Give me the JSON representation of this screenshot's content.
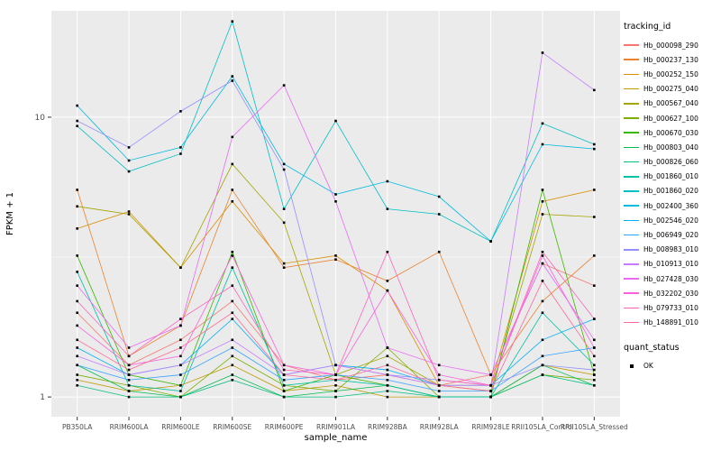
{
  "chart_data": {
    "type": "line",
    "title": "",
    "xlabel": "sample_name",
    "ylabel": "FPKM + 1",
    "y_scale": "log10",
    "y_ticks": [
      1,
      10
    ],
    "y_minor": [
      3.162
    ],
    "ylim": [
      0.85,
      24
    ],
    "grid": true,
    "panel_bg": "#EBEBEB",
    "grid_color": "#FFFFFF",
    "tick_label_color": "#4D4D4D",
    "point_color": "#000000",
    "legend_position": "right",
    "categories": [
      "PB350LA",
      "RRIM600LA",
      "RRIM600LE",
      "RRIM600SE",
      "RRIM600PE",
      "RRIM901LA",
      "RRIM928BA",
      "RRIM928LA",
      "RRIM928LE",
      "RRII105LA_Control",
      "RRII105LA_Stressed"
    ],
    "series": [
      {
        "name": "Hb_000098_290",
        "color": "#F8766D",
        "values": [
          2.0,
          1.3,
          1.6,
          2.2,
          1.3,
          1.15,
          1.2,
          1.1,
          1.2,
          3.0,
          2.5
        ]
      },
      {
        "name": "Hb_000237_130",
        "color": "#EA8331",
        "values": [
          5.5,
          1.4,
          1.8,
          5.5,
          2.9,
          3.1,
          2.6,
          3.3,
          1.2,
          2.2,
          3.2
        ]
      },
      {
        "name": "Hb_000252_150",
        "color": "#D89000",
        "values": [
          4.0,
          4.6,
          2.9,
          5.0,
          3.0,
          3.2,
          2.4,
          1.1,
          1.1,
          5.0,
          5.5
        ]
      },
      {
        "name": "Hb_000275_040",
        "color": "#C09B00",
        "values": [
          1.15,
          1.05,
          1.1,
          1.3,
          1.05,
          1.1,
          1.0,
          1.0,
          1.0,
          1.3,
          1.2
        ]
      },
      {
        "name": "Hb_000567_040",
        "color": "#A3A500",
        "values": [
          4.8,
          4.5,
          2.9,
          6.8,
          4.2,
          1.2,
          1.4,
          1.1,
          1.05,
          4.5,
          4.4
        ]
      },
      {
        "name": "Hb_000627_100",
        "color": "#7CAE00",
        "values": [
          1.2,
          1.1,
          1.0,
          1.4,
          1.1,
          1.05,
          1.5,
          1.0,
          1.0,
          1.2,
          1.15
        ]
      },
      {
        "name": "Hb_000670_030",
        "color": "#39B600",
        "values": [
          3.2,
          1.2,
          1.1,
          3.3,
          1.05,
          1.2,
          1.1,
          1.0,
          1.0,
          5.5,
          1.2
        ]
      },
      {
        "name": "Hb_000803_040",
        "color": "#00BB4E",
        "values": [
          1.3,
          1.05,
          1.0,
          1.2,
          1.0,
          1.05,
          1.1,
          1.0,
          1.0,
          1.3,
          1.1
        ]
      },
      {
        "name": "Hb_000826_060",
        "color": "#00BF7D",
        "values": [
          1.1,
          1.0,
          1.0,
          1.15,
          1.0,
          1.0,
          1.05,
          1.0,
          1.0,
          1.2,
          1.1
        ]
      },
      {
        "name": "Hb_001860_010",
        "color": "#00C1A3",
        "values": [
          2.8,
          1.1,
          1.05,
          2.9,
          1.1,
          1.15,
          1.1,
          1.0,
          1.0,
          2.0,
          1.3
        ]
      },
      {
        "name": "Hb_001860_020",
        "color": "#00BFC4",
        "values": [
          9.3,
          6.4,
          7.4,
          22.0,
          4.7,
          9.7,
          4.7,
          4.5,
          3.6,
          9.5,
          8.0
        ]
      },
      {
        "name": "Hb_002400_360",
        "color": "#00BAE0",
        "values": [
          11.0,
          7.0,
          7.8,
          14.0,
          6.8,
          5.3,
          5.9,
          5.2,
          3.6,
          8.0,
          7.7
        ]
      },
      {
        "name": "Hb_002546_020",
        "color": "#00B0F6",
        "values": [
          1.5,
          1.2,
          1.3,
          1.9,
          1.2,
          1.3,
          1.25,
          1.1,
          1.1,
          1.6,
          1.9
        ]
      },
      {
        "name": "Hb_006949_020",
        "color": "#35A2FF",
        "values": [
          1.3,
          1.15,
          1.2,
          1.5,
          1.15,
          1.2,
          1.15,
          1.05,
          1.05,
          1.4,
          1.5
        ]
      },
      {
        "name": "Hb_008983_010",
        "color": "#9590FF",
        "values": [
          9.7,
          7.8,
          10.5,
          13.5,
          6.5,
          1.3,
          1.2,
          1.15,
          1.1,
          1.3,
          1.25
        ]
      },
      {
        "name": "Hb_010913_010",
        "color": "#C77CFF",
        "values": [
          1.4,
          1.2,
          1.3,
          1.6,
          1.2,
          1.3,
          1.2,
          1.1,
          1.1,
          17.0,
          12.5
        ]
      },
      {
        "name": "Hb_027428_030",
        "color": "#E76BF3",
        "values": [
          2.5,
          1.5,
          1.8,
          8.5,
          13.0,
          5.0,
          1.5,
          1.3,
          1.2,
          3.0,
          1.6
        ]
      },
      {
        "name": "Hb_032202_030",
        "color": "#FA62DB",
        "values": [
          1.8,
          1.3,
          1.4,
          3.2,
          1.3,
          1.2,
          2.4,
          1.2,
          1.1,
          3.2,
          1.5
        ]
      },
      {
        "name": "Hb_079733_010",
        "color": "#FF62BC",
        "values": [
          2.2,
          1.4,
          1.9,
          2.5,
          1.25,
          1.2,
          3.3,
          1.15,
          1.1,
          3.3,
          1.9
        ]
      },
      {
        "name": "Hb_148891_010",
        "color": "#FF6A98",
        "values": [
          1.6,
          1.25,
          1.5,
          2.0,
          1.2,
          1.15,
          1.3,
          1.1,
          1.05,
          2.6,
          1.4
        ]
      }
    ],
    "legend": {
      "color_title": "tracking_id",
      "shape_title": "quant_status",
      "shape_label": "OK"
    }
  }
}
